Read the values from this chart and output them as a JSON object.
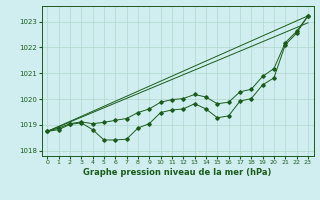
{
  "xlabel": "Graphe pression niveau de la mer (hPa)",
  "background_color": "#d0eef0",
  "line_color": "#1a5c1a",
  "grid_color": "#b0d8cc",
  "xlim": [
    -0.5,
    23.5
  ],
  "ylim": [
    1017.8,
    1023.6
  ],
  "yticks": [
    1018,
    1019,
    1020,
    1021,
    1022,
    1023
  ],
  "xticks": [
    0,
    1,
    2,
    3,
    4,
    5,
    6,
    7,
    8,
    9,
    10,
    11,
    12,
    13,
    14,
    15,
    16,
    17,
    18,
    19,
    20,
    21,
    22,
    23
  ],
  "series_wavy": {
    "x": [
      0,
      1,
      2,
      3,
      4,
      5,
      6,
      7,
      8,
      9,
      10,
      11,
      12,
      13,
      14,
      15,
      16,
      17,
      18,
      19,
      20,
      21,
      22,
      23
    ],
    "y": [
      1018.75,
      1018.82,
      1019.02,
      1019.08,
      1018.82,
      1018.42,
      1018.42,
      1018.45,
      1018.88,
      1019.05,
      1019.48,
      1019.58,
      1019.62,
      1019.82,
      1019.62,
      1019.28,
      1019.35,
      1019.92,
      1020.02,
      1020.55,
      1020.82,
      1022.1,
      1022.55,
      1023.22
    ]
  },
  "series_smooth": {
    "x": [
      0,
      1,
      2,
      3,
      4,
      5,
      6,
      7,
      8,
      9,
      10,
      11,
      12,
      13,
      14,
      15,
      16,
      17,
      18,
      19,
      20,
      21,
      22,
      23
    ],
    "y": [
      1018.75,
      1018.88,
      1019.05,
      1019.12,
      1019.05,
      1019.1,
      1019.18,
      1019.25,
      1019.48,
      1019.62,
      1019.88,
      1019.98,
      1020.02,
      1020.18,
      1020.08,
      1019.82,
      1019.88,
      1020.28,
      1020.38,
      1020.88,
      1021.18,
      1022.18,
      1022.62,
      1023.22
    ]
  },
  "line_diag1": {
    "x0": 0,
    "y0": 1018.75,
    "x1": 23,
    "y1": 1023.22
  },
  "line_diag2": {
    "x0": 0,
    "y0": 1018.75,
    "x1": 23,
    "y1": 1022.95
  }
}
